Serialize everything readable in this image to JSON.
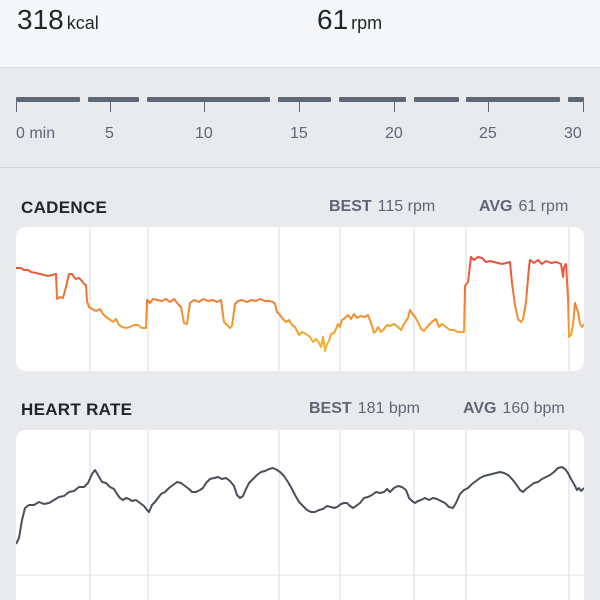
{
  "stats": {
    "calories": {
      "value": "318",
      "unit": "kcal"
    },
    "cadence": {
      "value": "61",
      "unit": "rpm"
    }
  },
  "timeline": {
    "labels": [
      "0 min",
      "5",
      "10",
      "15",
      "20",
      "25",
      "30"
    ]
  },
  "cadence": {
    "title": "CADENCE",
    "best_label": "BEST",
    "best_value": "115 rpm",
    "avg_label": "AVG",
    "avg_value": "61 rpm"
  },
  "heart_rate": {
    "title": "HEART RATE",
    "best_label": "BEST",
    "best_value": "181 bpm",
    "avg_label": "AVG",
    "avg_value": "160 bpm"
  },
  "colors": {
    "cadence_high": "#e8453c",
    "cadence_low": "#f2ad2c",
    "heart_line": "#4a4f5c",
    "timeline": "#5f6675"
  }
}
